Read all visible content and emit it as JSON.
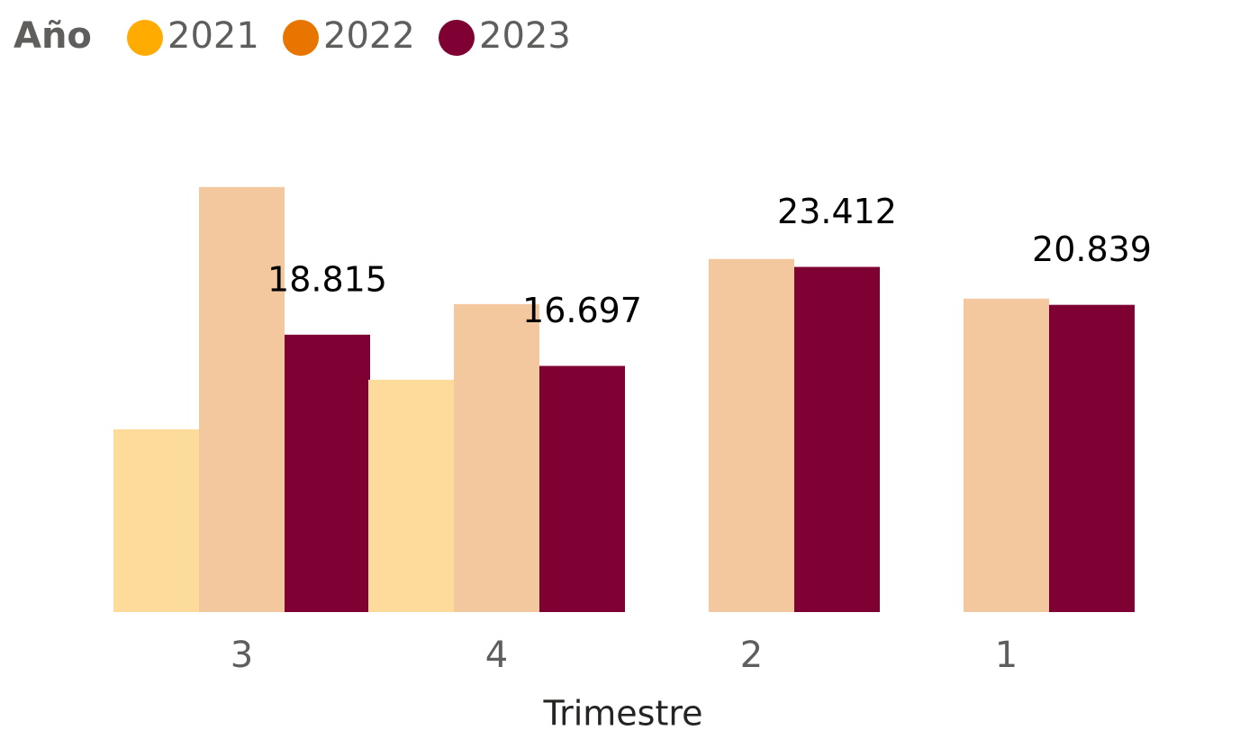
{
  "chart_data": {
    "type": "bar",
    "legend_title": "Año",
    "x_label": "Trimestre",
    "categories": [
      "3",
      "4",
      "2",
      "1"
    ],
    "series": [
      {
        "name": "2021",
        "color": "#ffab00",
        "fill": "#fddb9a",
        "values": [
          12400,
          15760,
          null,
          null
        ]
      },
      {
        "name": "2022",
        "color": "#e87500",
        "fill": "#f4c89e",
        "values": [
          28830,
          20890,
          23950,
          21260
        ]
      },
      {
        "name": "2023",
        "color": "#7f0033",
        "fill": "#7f0033",
        "values": [
          18815,
          16697,
          23412,
          20839
        ],
        "value_labels": [
          "18.815",
          "16.697",
          "23.412",
          "20.839"
        ]
      }
    ],
    "ylim": [
      0,
      29000
    ],
    "legend": "top-left"
  }
}
